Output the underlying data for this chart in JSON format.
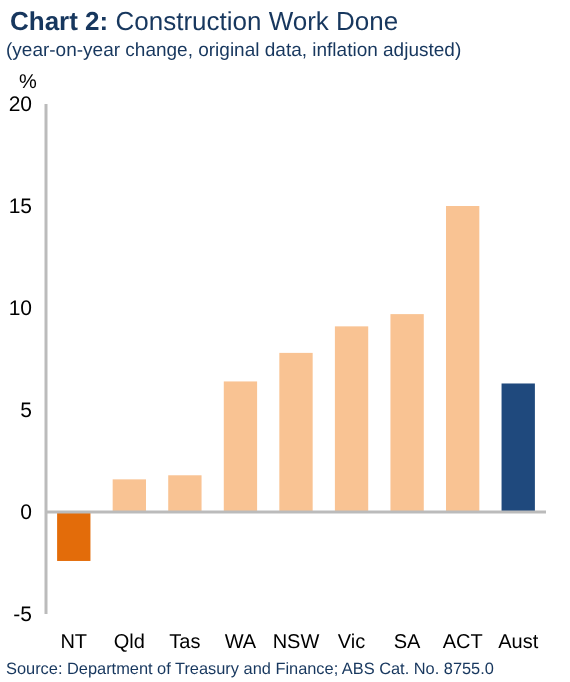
{
  "chart_data": {
    "type": "bar",
    "title": "Chart 2: Construction Work Done",
    "subtitle": "(year-on-year change, original data, inflation adjusted)",
    "ylabel": "%",
    "categories": [
      "NT",
      "Qld",
      "Tas",
      "WA",
      "NSW",
      "Vic",
      "SA",
      "ACT",
      "Aust"
    ],
    "values": [
      -2.4,
      1.6,
      1.8,
      6.4,
      7.8,
      9.1,
      9.7,
      15.0,
      6.3
    ],
    "colors": [
      "#e36c0a",
      "#f9c393",
      "#f9c393",
      "#f9c393",
      "#f9c393",
      "#f9c393",
      "#f9c393",
      "#f9c393",
      "#1f497d"
    ],
    "ylim": [
      -5,
      20
    ],
    "yticks": [
      -5,
      0,
      5,
      10,
      15,
      20
    ],
    "annotations": [
      "Source: Department of Treasury and Finance; ABS Cat. No. 8755.0"
    ]
  }
}
